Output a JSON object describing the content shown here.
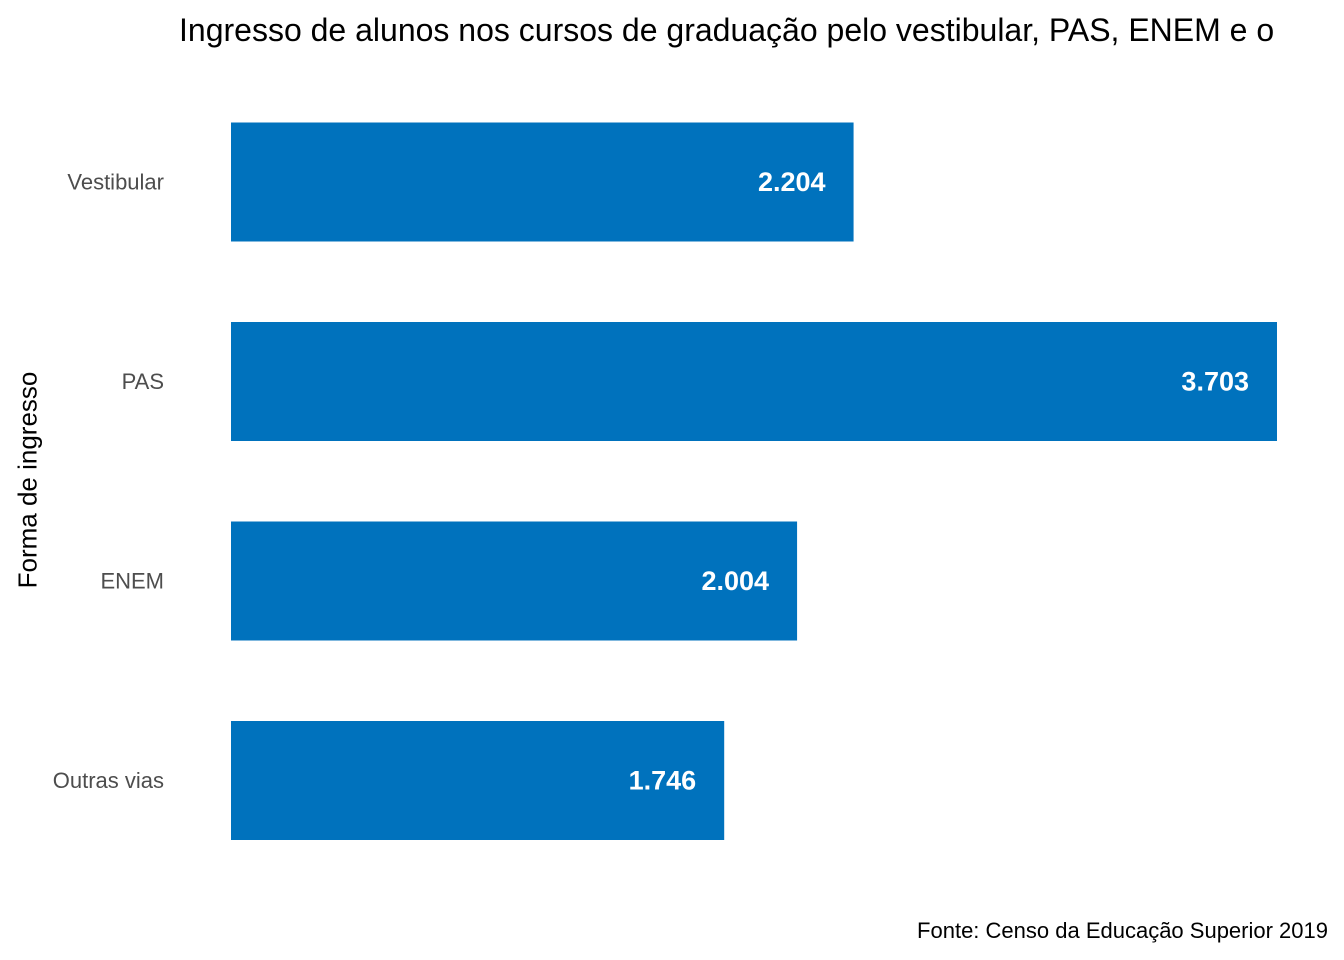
{
  "chart_data": {
    "type": "bar",
    "orientation": "horizontal",
    "title": "Ingresso de alunos nos cursos de graduação pelo vestibular, PAS, ENEM e o",
    "ylabel": "Forma de ingresso",
    "xlabel": "",
    "caption": "Fonte: Censo da Educação Superior 2019",
    "categories": [
      "Vestibular",
      "PAS",
      "ENEM",
      "Outras vias"
    ],
    "values": [
      2204,
      3703,
      2004,
      1746
    ],
    "data_labels": [
      "2.204",
      "3.703",
      "2.004",
      "1.746"
    ],
    "xlim": [
      0,
      3703
    ],
    "grid": false,
    "legend": "none",
    "colors": {
      "bar": "#0072BD",
      "bar_label": "#FFFFFF",
      "tick_label": "#4D4D4D"
    }
  }
}
